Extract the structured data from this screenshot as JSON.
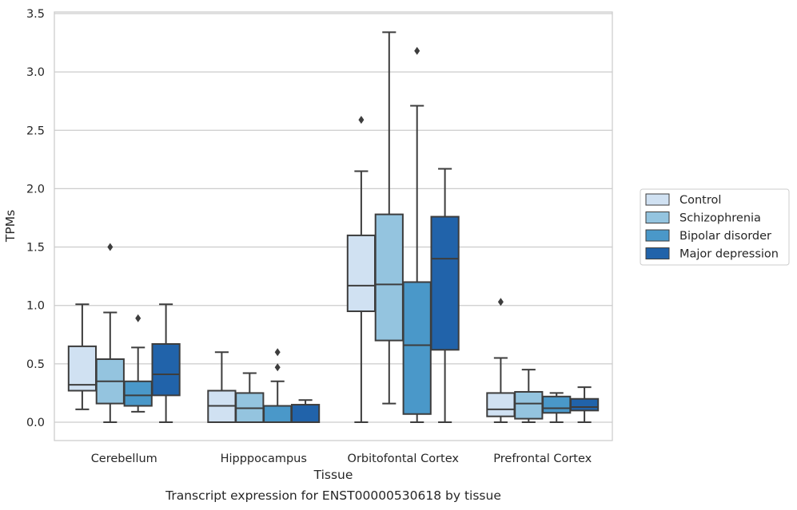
{
  "chart_data": {
    "type": "box",
    "title": "",
    "caption": "Transcript expression for ENST00000530618 by tissue",
    "xlabel": "Tissue",
    "ylabel": "TPMs",
    "ylim": [
      -0.16,
      3.52
    ],
    "yticks": [
      0.0,
      0.5,
      1.0,
      1.5,
      2.0,
      2.5,
      3.0,
      3.5
    ],
    "ytick_labels": [
      "0.0",
      "0.5",
      "1.0",
      "1.5",
      "2.0",
      "2.5",
      "3.0",
      "3.5"
    ],
    "grid": "horizontal",
    "legend_position": "right",
    "categories": [
      "Cerebellum",
      "Hipppocampus",
      "Orbitofontal Cortex",
      "Prefrontal Cortex"
    ],
    "series": [
      {
        "name": "Control",
        "color": "#d0e1f2",
        "boxes": [
          {
            "whisker_low": 0.11,
            "q1": 0.27,
            "median": 0.32,
            "q3": 0.65,
            "whisker_high": 1.01,
            "outliers": []
          },
          {
            "whisker_low": 0.0,
            "q1": 0.0,
            "median": 0.14,
            "q3": 0.27,
            "whisker_high": 0.6,
            "outliers": []
          },
          {
            "whisker_low": 0.0,
            "q1": 0.95,
            "median": 1.17,
            "q3": 1.6,
            "whisker_high": 2.15,
            "outliers": [
              2.59
            ]
          },
          {
            "whisker_low": 0.0,
            "q1": 0.05,
            "median": 0.11,
            "q3": 0.25,
            "whisker_high": 0.55,
            "outliers": [
              1.03
            ]
          }
        ]
      },
      {
        "name": "Schizophrenia",
        "color": "#94c4df",
        "boxes": [
          {
            "whisker_low": 0.0,
            "q1": 0.16,
            "median": 0.35,
            "q3": 0.54,
            "whisker_high": 0.94,
            "outliers": [
              1.5
            ]
          },
          {
            "whisker_low": 0.0,
            "q1": 0.0,
            "median": 0.12,
            "q3": 0.25,
            "whisker_high": 0.42,
            "outliers": []
          },
          {
            "whisker_low": 0.16,
            "q1": 0.7,
            "median": 1.18,
            "q3": 1.78,
            "whisker_high": 3.34,
            "outliers": []
          },
          {
            "whisker_low": 0.0,
            "q1": 0.03,
            "median": 0.16,
            "q3": 0.26,
            "whisker_high": 0.45,
            "outliers": []
          }
        ]
      },
      {
        "name": "Bipolar disorder",
        "color": "#4a98c9",
        "boxes": [
          {
            "whisker_low": 0.09,
            "q1": 0.14,
            "median": 0.23,
            "q3": 0.35,
            "whisker_high": 0.64,
            "outliers": [
              0.89
            ]
          },
          {
            "whisker_low": 0.0,
            "q1": 0.0,
            "median": 0.0,
            "q3": 0.14,
            "whisker_high": 0.35,
            "outliers": [
              0.47,
              0.6
            ]
          },
          {
            "whisker_low": 0.0,
            "q1": 0.07,
            "median": 0.66,
            "q3": 1.2,
            "whisker_high": 2.71,
            "outliers": [
              3.18
            ]
          },
          {
            "whisker_low": 0.0,
            "q1": 0.08,
            "median": 0.12,
            "q3": 0.22,
            "whisker_high": 0.25,
            "outliers": []
          }
        ]
      },
      {
        "name": "Major depression",
        "color": "#2163aa",
        "boxes": [
          {
            "whisker_low": 0.0,
            "q1": 0.23,
            "median": 0.41,
            "q3": 0.67,
            "whisker_high": 1.01,
            "outliers": []
          },
          {
            "whisker_low": 0.0,
            "q1": 0.0,
            "median": 0.0,
            "q3": 0.15,
            "whisker_high": 0.19,
            "outliers": []
          },
          {
            "whisker_low": 0.0,
            "q1": 0.62,
            "median": 1.4,
            "q3": 1.76,
            "whisker_high": 2.17,
            "outliers": []
          },
          {
            "whisker_low": 0.0,
            "q1": 0.1,
            "median": 0.13,
            "q3": 0.2,
            "whisker_high": 0.3,
            "outliers": []
          }
        ]
      }
    ]
  }
}
